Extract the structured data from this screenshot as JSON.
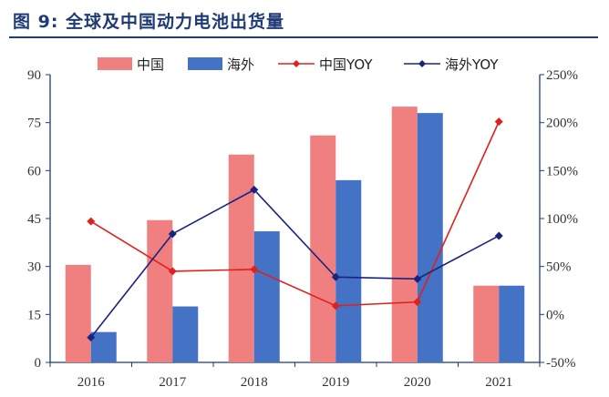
{
  "title": "图 9:  全球及中国动力电池出货量",
  "colors": {
    "title": "#1f3b75",
    "china_bar": "#f08080",
    "overseas_bar": "#4472c4",
    "china_yoy": "#e0201c",
    "overseas_yoy": "#1a237e",
    "axis": "#1f3b75"
  },
  "chart_data": {
    "type": "bar",
    "categories": [
      "2016",
      "2017",
      "2018",
      "2019",
      "2020",
      "2021"
    ],
    "series": [
      {
        "name": "中国",
        "type": "bar",
        "axis": "left",
        "values": [
          30.5,
          44.5,
          65,
          71,
          80,
          24
        ]
      },
      {
        "name": "海外",
        "type": "bar",
        "axis": "left",
        "values": [
          9.5,
          17.5,
          41,
          57,
          78,
          24
        ]
      },
      {
        "name": "中国YOY",
        "type": "line",
        "axis": "right",
        "values": [
          97,
          45,
          47,
          9,
          13,
          201
        ]
      },
      {
        "name": "海外YOY",
        "type": "line",
        "axis": "right",
        "values": [
          -24,
          84,
          130,
          39,
          37,
          82
        ]
      }
    ],
    "y_left": {
      "ticks": [
        "0",
        "15",
        "30",
        "45",
        "60",
        "75",
        "90"
      ],
      "range": [
        0,
        90
      ]
    },
    "y_right": {
      "ticks": [
        "-50%",
        "0%",
        "50%",
        "100%",
        "150%",
        "200%",
        "250%"
      ],
      "range": [
        -50,
        250
      ]
    },
    "legend": {
      "placement": "top",
      "entries": [
        "中国",
        "海外",
        "中国YOY",
        "海外YOY"
      ]
    },
    "grid": false
  }
}
